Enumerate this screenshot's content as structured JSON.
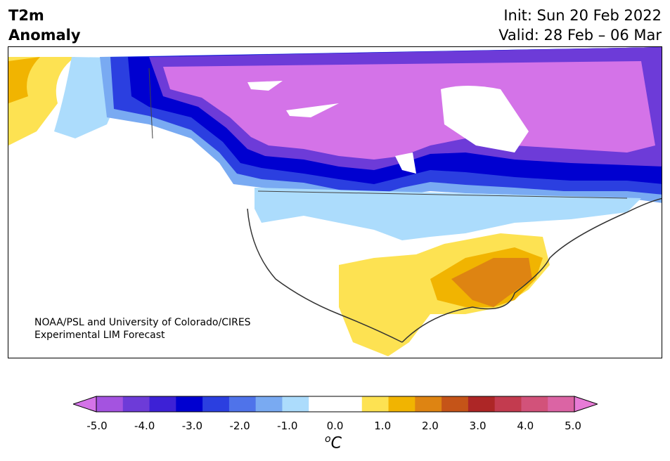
{
  "title": {
    "left_line1": "T2m",
    "left_line2": "Anomaly",
    "init": "Init: Sun 20 Feb 2022",
    "valid": "Valid: 28 Feb – 06 Mar"
  },
  "credit": {
    "line1": "NOAA/PSL and University of Colorado/CIRES",
    "line2": "Experimental LIM Forecast"
  },
  "colorbar": {
    "unit_base": "C",
    "unit_sup": "o",
    "ticks": [
      "-5.0",
      "-4.0",
      "-3.0",
      "-2.0",
      "-1.0",
      "0.0",
      "1.0",
      "2.0",
      "3.0",
      "4.0",
      "5.0"
    ],
    "colors": [
      "#d473e8",
      "#a453e0",
      "#6d3bd8",
      "#3d21d6",
      "#0000d0",
      "#2b3fe0",
      "#4f73ea",
      "#79aaf2",
      "#acdcfc",
      "#ffffff",
      "#ffffff",
      "#fde252",
      "#f1b401",
      "#de8412",
      "#c55418",
      "#ad2626",
      "#c33b4f",
      "#d2527a",
      "#db64a4",
      "#e77bd6"
    ]
  }
}
